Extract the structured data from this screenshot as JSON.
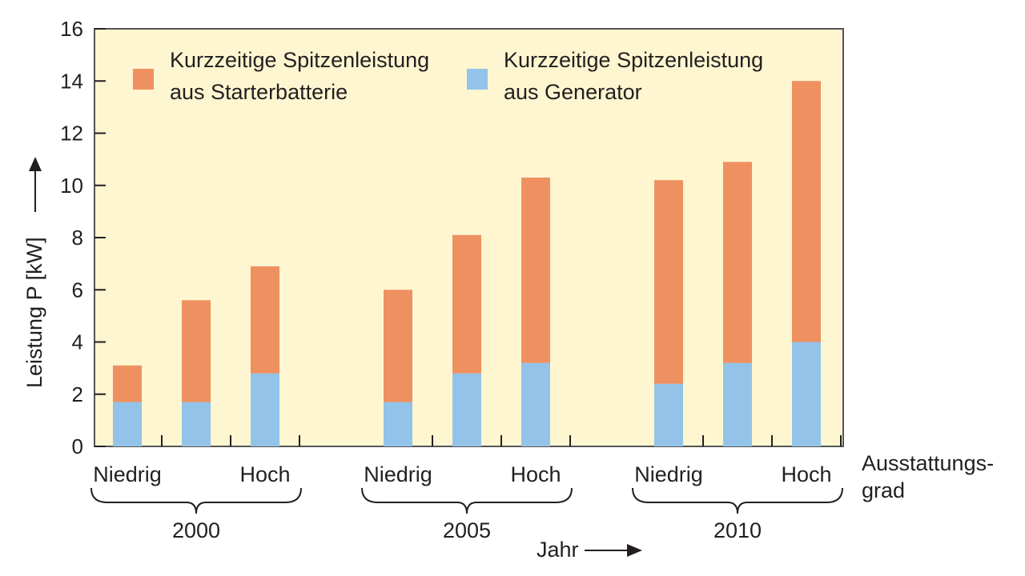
{
  "chart_data": {
    "type": "bar",
    "stacked": true,
    "ylabel": "Leistung P [kW]",
    "xlabel": "Jahr",
    "ylim": [
      0,
      16
    ],
    "yticks": [
      0,
      2,
      4,
      6,
      8,
      10,
      12,
      14,
      16
    ],
    "groups": [
      "2000",
      "2005",
      "2010"
    ],
    "category_labels": [
      "Niedrig",
      "",
      "Hoch"
    ],
    "category_axis_label": [
      "Ausstattungs-",
      "grad"
    ],
    "series": [
      {
        "name": "Kurzzeitige Spitzenleistung aus Generator",
        "legend_lines": [
          "Kurzzeitige Spitzenleistung",
          "aus Generator"
        ],
        "color": "#93c3e8",
        "values": [
          1.7,
          1.7,
          2.8,
          1.7,
          2.8,
          3.2,
          2.4,
          3.2,
          4.0
        ]
      },
      {
        "name": "Kurzzeitige Spitzenleistung aus Starterbatterie",
        "legend_lines": [
          "Kurzzeitige Spitzenleistung",
          "aus Starterbatterie"
        ],
        "color": "#ef9060",
        "values": [
          1.4,
          3.9,
          4.1,
          4.3,
          5.3,
          7.1,
          7.8,
          7.7,
          10.0
        ]
      }
    ],
    "totals": [
      3.1,
      5.6,
      6.9,
      6.0,
      8.1,
      10.3,
      10.2,
      10.9,
      14.0
    ],
    "legend_position": "top",
    "background_color": "#fdf6d0"
  }
}
